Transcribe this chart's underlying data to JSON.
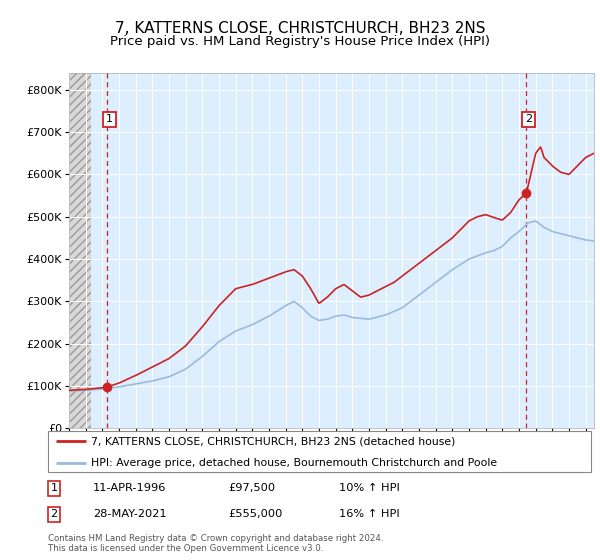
{
  "title": "7, KATTERNS CLOSE, CHRISTCHURCH, BH23 2NS",
  "subtitle": "Price paid vs. HM Land Registry's House Price Index (HPI)",
  "ylim": [
    0,
    840000
  ],
  "yticks": [
    0,
    100000,
    200000,
    300000,
    400000,
    500000,
    600000,
    700000,
    800000
  ],
  "ytick_labels": [
    "£0",
    "£100K",
    "£200K",
    "£300K",
    "£400K",
    "£500K",
    "£600K",
    "£700K",
    "£800K"
  ],
  "hpi_color": "#99bbdd",
  "price_color": "#cc2222",
  "marker_color": "#cc2222",
  "dashed_color": "#cc2222",
  "background_plot": "#ddeeff",
  "legend_label_price": "7, KATTERNS CLOSE, CHRISTCHURCH, BH23 2NS (detached house)",
  "legend_label_hpi": "HPI: Average price, detached house, Bournemouth Christchurch and Poole",
  "sale1_date": "11-APR-1996",
  "sale1_price": "£97,500",
  "sale1_hpi": "10% ↑ HPI",
  "sale1_year": 1996.28,
  "sale1_value": 97500,
  "sale2_date": "28-MAY-2021",
  "sale2_price": "£555,000",
  "sale2_hpi": "16% ↑ HPI",
  "sale2_year": 2021.42,
  "sale2_value": 555000,
  "copyright": "Contains HM Land Registry data © Crown copyright and database right 2024.\nThis data is licensed under the Open Government Licence v3.0.",
  "xmin": 1994,
  "xmax": 2025.5,
  "hatch_xmax": 1995.3,
  "hpi_anchors": [
    [
      1994.0,
      88000
    ],
    [
      1995.0,
      90000
    ],
    [
      1996.0,
      93000
    ],
    [
      1997.0,
      98000
    ],
    [
      1998.0,
      105000
    ],
    [
      1999.0,
      112000
    ],
    [
      2000.0,
      122000
    ],
    [
      2001.0,
      140000
    ],
    [
      2002.0,
      170000
    ],
    [
      2003.0,
      205000
    ],
    [
      2004.0,
      230000
    ],
    [
      2005.0,
      245000
    ],
    [
      2006.0,
      265000
    ],
    [
      2007.0,
      290000
    ],
    [
      2007.5,
      300000
    ],
    [
      2008.0,
      285000
    ],
    [
      2008.5,
      265000
    ],
    [
      2009.0,
      255000
    ],
    [
      2009.5,
      258000
    ],
    [
      2010.0,
      265000
    ],
    [
      2010.5,
      268000
    ],
    [
      2011.0,
      262000
    ],
    [
      2012.0,
      258000
    ],
    [
      2013.0,
      268000
    ],
    [
      2014.0,
      285000
    ],
    [
      2015.0,
      315000
    ],
    [
      2016.0,
      345000
    ],
    [
      2017.0,
      375000
    ],
    [
      2018.0,
      400000
    ],
    [
      2019.0,
      415000
    ],
    [
      2019.5,
      420000
    ],
    [
      2020.0,
      430000
    ],
    [
      2020.5,
      450000
    ],
    [
      2021.0,
      465000
    ],
    [
      2021.42,
      480000
    ],
    [
      2021.5,
      485000
    ],
    [
      2022.0,
      490000
    ],
    [
      2022.5,
      475000
    ],
    [
      2023.0,
      465000
    ],
    [
      2023.5,
      460000
    ],
    [
      2024.0,
      455000
    ],
    [
      2024.5,
      450000
    ],
    [
      2025.0,
      445000
    ],
    [
      2025.5,
      443000
    ]
  ],
  "price_anchors": [
    [
      1994.0,
      90000
    ],
    [
      1995.0,
      92000
    ],
    [
      1996.0,
      96000
    ],
    [
      1996.28,
      97500
    ],
    [
      1997.0,
      107000
    ],
    [
      1998.0,
      125000
    ],
    [
      1999.0,
      145000
    ],
    [
      2000.0,
      165000
    ],
    [
      2001.0,
      195000
    ],
    [
      2002.0,
      240000
    ],
    [
      2003.0,
      290000
    ],
    [
      2004.0,
      330000
    ],
    [
      2005.0,
      340000
    ],
    [
      2006.0,
      355000
    ],
    [
      2007.0,
      370000
    ],
    [
      2007.5,
      375000
    ],
    [
      2008.0,
      360000
    ],
    [
      2008.5,
      330000
    ],
    [
      2009.0,
      295000
    ],
    [
      2009.5,
      310000
    ],
    [
      2010.0,
      330000
    ],
    [
      2010.5,
      340000
    ],
    [
      2011.0,
      325000
    ],
    [
      2011.5,
      310000
    ],
    [
      2012.0,
      315000
    ],
    [
      2012.5,
      325000
    ],
    [
      2013.0,
      335000
    ],
    [
      2013.5,
      345000
    ],
    [
      2014.0,
      360000
    ],
    [
      2015.0,
      390000
    ],
    [
      2016.0,
      420000
    ],
    [
      2017.0,
      450000
    ],
    [
      2018.0,
      490000
    ],
    [
      2018.5,
      500000
    ],
    [
      2019.0,
      505000
    ],
    [
      2019.5,
      498000
    ],
    [
      2020.0,
      492000
    ],
    [
      2020.5,
      510000
    ],
    [
      2021.0,
      540000
    ],
    [
      2021.42,
      555000
    ],
    [
      2021.5,
      565000
    ],
    [
      2022.0,
      650000
    ],
    [
      2022.3,
      665000
    ],
    [
      2022.5,
      640000
    ],
    [
      2023.0,
      620000
    ],
    [
      2023.5,
      605000
    ],
    [
      2024.0,
      600000
    ],
    [
      2024.5,
      620000
    ],
    [
      2025.0,
      640000
    ],
    [
      2025.5,
      650000
    ]
  ]
}
